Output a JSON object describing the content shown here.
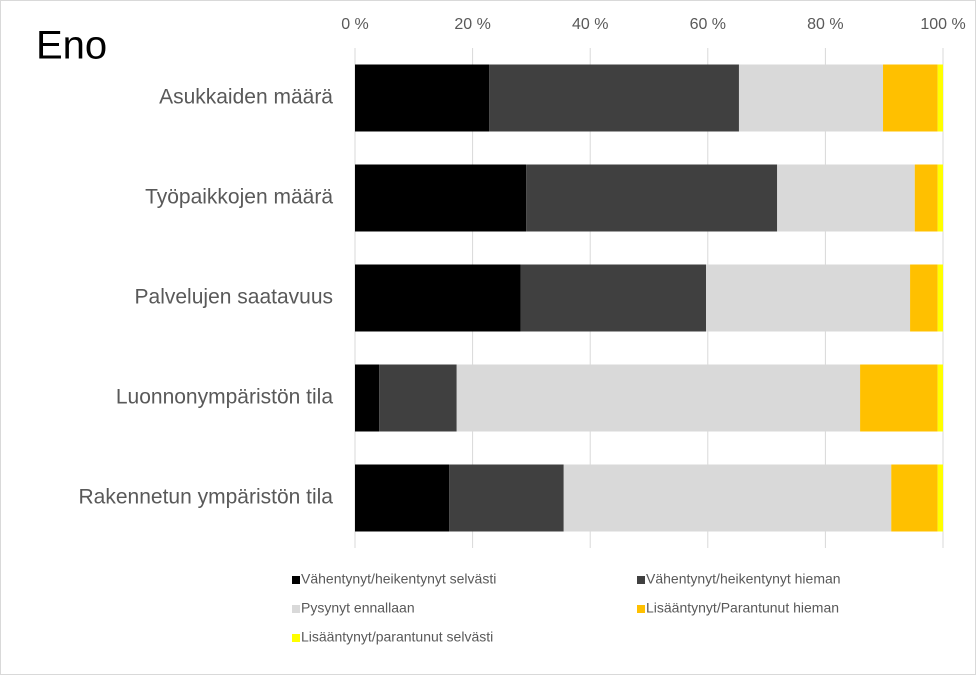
{
  "chart_data": {
    "type": "stacked-barh",
    "title": "Eno",
    "categories": [
      "Asukkaiden määrä",
      "Työpaikkojen määrä",
      "Palvelujen saatavuus",
      "Luonnonympäristön tila",
      "Rakennetun ympäristön tila"
    ],
    "series": [
      {
        "name": "Vähentynyt/heikentynyt selvästi",
        "color": "#000000",
        "values": [
          22.8,
          29.1,
          28.2,
          4.1,
          16.0
        ]
      },
      {
        "name": "Vähentynyt/heikentynyt hieman",
        "color": "#404040",
        "values": [
          42.5,
          42.7,
          31.5,
          13.2,
          19.5
        ]
      },
      {
        "name": "Pysynyt ennallaan",
        "color": "#d9d9d9",
        "values": [
          24.5,
          23.4,
          34.7,
          68.6,
          55.7
        ]
      },
      {
        "name": "Lisääntynyt/Parantunut hieman",
        "color": "#ffc000",
        "values": [
          9.3,
          3.9,
          4.7,
          13.2,
          7.9
        ]
      },
      {
        "name": "Lisääntynyt/parantunut selvästi",
        "color": "#ffff00",
        "values": [
          0.9,
          0.9,
          0.9,
          0.9,
          0.9
        ]
      }
    ],
    "xlim": [
      0,
      100
    ],
    "xticks": [
      {
        "value": 0,
        "label": "0 %"
      },
      {
        "value": 20,
        "label": "20 %"
      },
      {
        "value": 40,
        "label": "40 %"
      },
      {
        "value": 60,
        "label": "60 %"
      },
      {
        "value": 80,
        "label": "80 %"
      },
      {
        "value": 100,
        "label": "100 %"
      }
    ],
    "grid": true
  }
}
